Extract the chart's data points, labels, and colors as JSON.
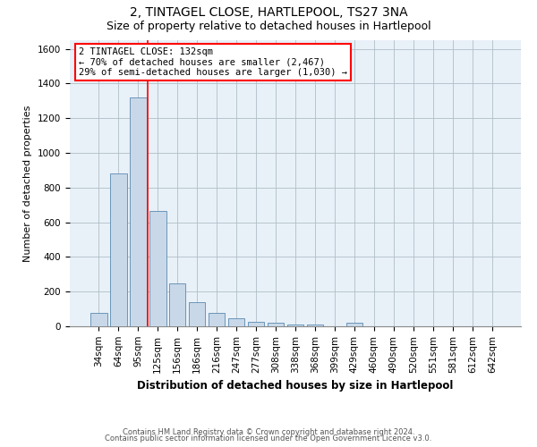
{
  "title1": "2, TINTAGEL CLOSE, HARTLEPOOL, TS27 3NA",
  "title2": "Size of property relative to detached houses in Hartlepool",
  "xlabel": "Distribution of detached houses by size in Hartlepool",
  "ylabel": "Number of detached properties",
  "categories": [
    "34sqm",
    "64sqm",
    "95sqm",
    "125sqm",
    "156sqm",
    "186sqm",
    "216sqm",
    "247sqm",
    "277sqm",
    "308sqm",
    "338sqm",
    "368sqm",
    "399sqm",
    "429sqm",
    "460sqm",
    "490sqm",
    "520sqm",
    "551sqm",
    "581sqm",
    "612sqm",
    "642sqm"
  ],
  "values": [
    75,
    880,
    1320,
    665,
    245,
    140,
    75,
    45,
    25,
    20,
    12,
    8,
    0,
    20,
    0,
    0,
    0,
    0,
    0,
    0,
    0
  ],
  "bar_color": "#c8d8e8",
  "bar_edge_color": "#5a8ab0",
  "annotation_lines": [
    "2 TINTAGEL CLOSE: 132sqm",
    "← 70% of detached houses are smaller (2,467)",
    "29% of semi-detached houses are larger (1,030) →"
  ],
  "footer_lines": [
    "Contains HM Land Registry data © Crown copyright and database right 2024.",
    "Contains public sector information licensed under the Open Government Licence v3.0."
  ],
  "ylim": [
    0,
    1650
  ],
  "yticks": [
    0,
    200,
    400,
    600,
    800,
    1000,
    1200,
    1400,
    1600
  ],
  "bg_color": "#ffffff",
  "plot_bg_color": "#e8f0f8",
  "grid_color": "#b0bec5",
  "title1_fontsize": 10,
  "title2_fontsize": 9,
  "xlabel_fontsize": 8.5,
  "ylabel_fontsize": 8,
  "tick_fontsize": 7.5,
  "annotation_fontsize": 7.5,
  "footer_fontsize": 6
}
